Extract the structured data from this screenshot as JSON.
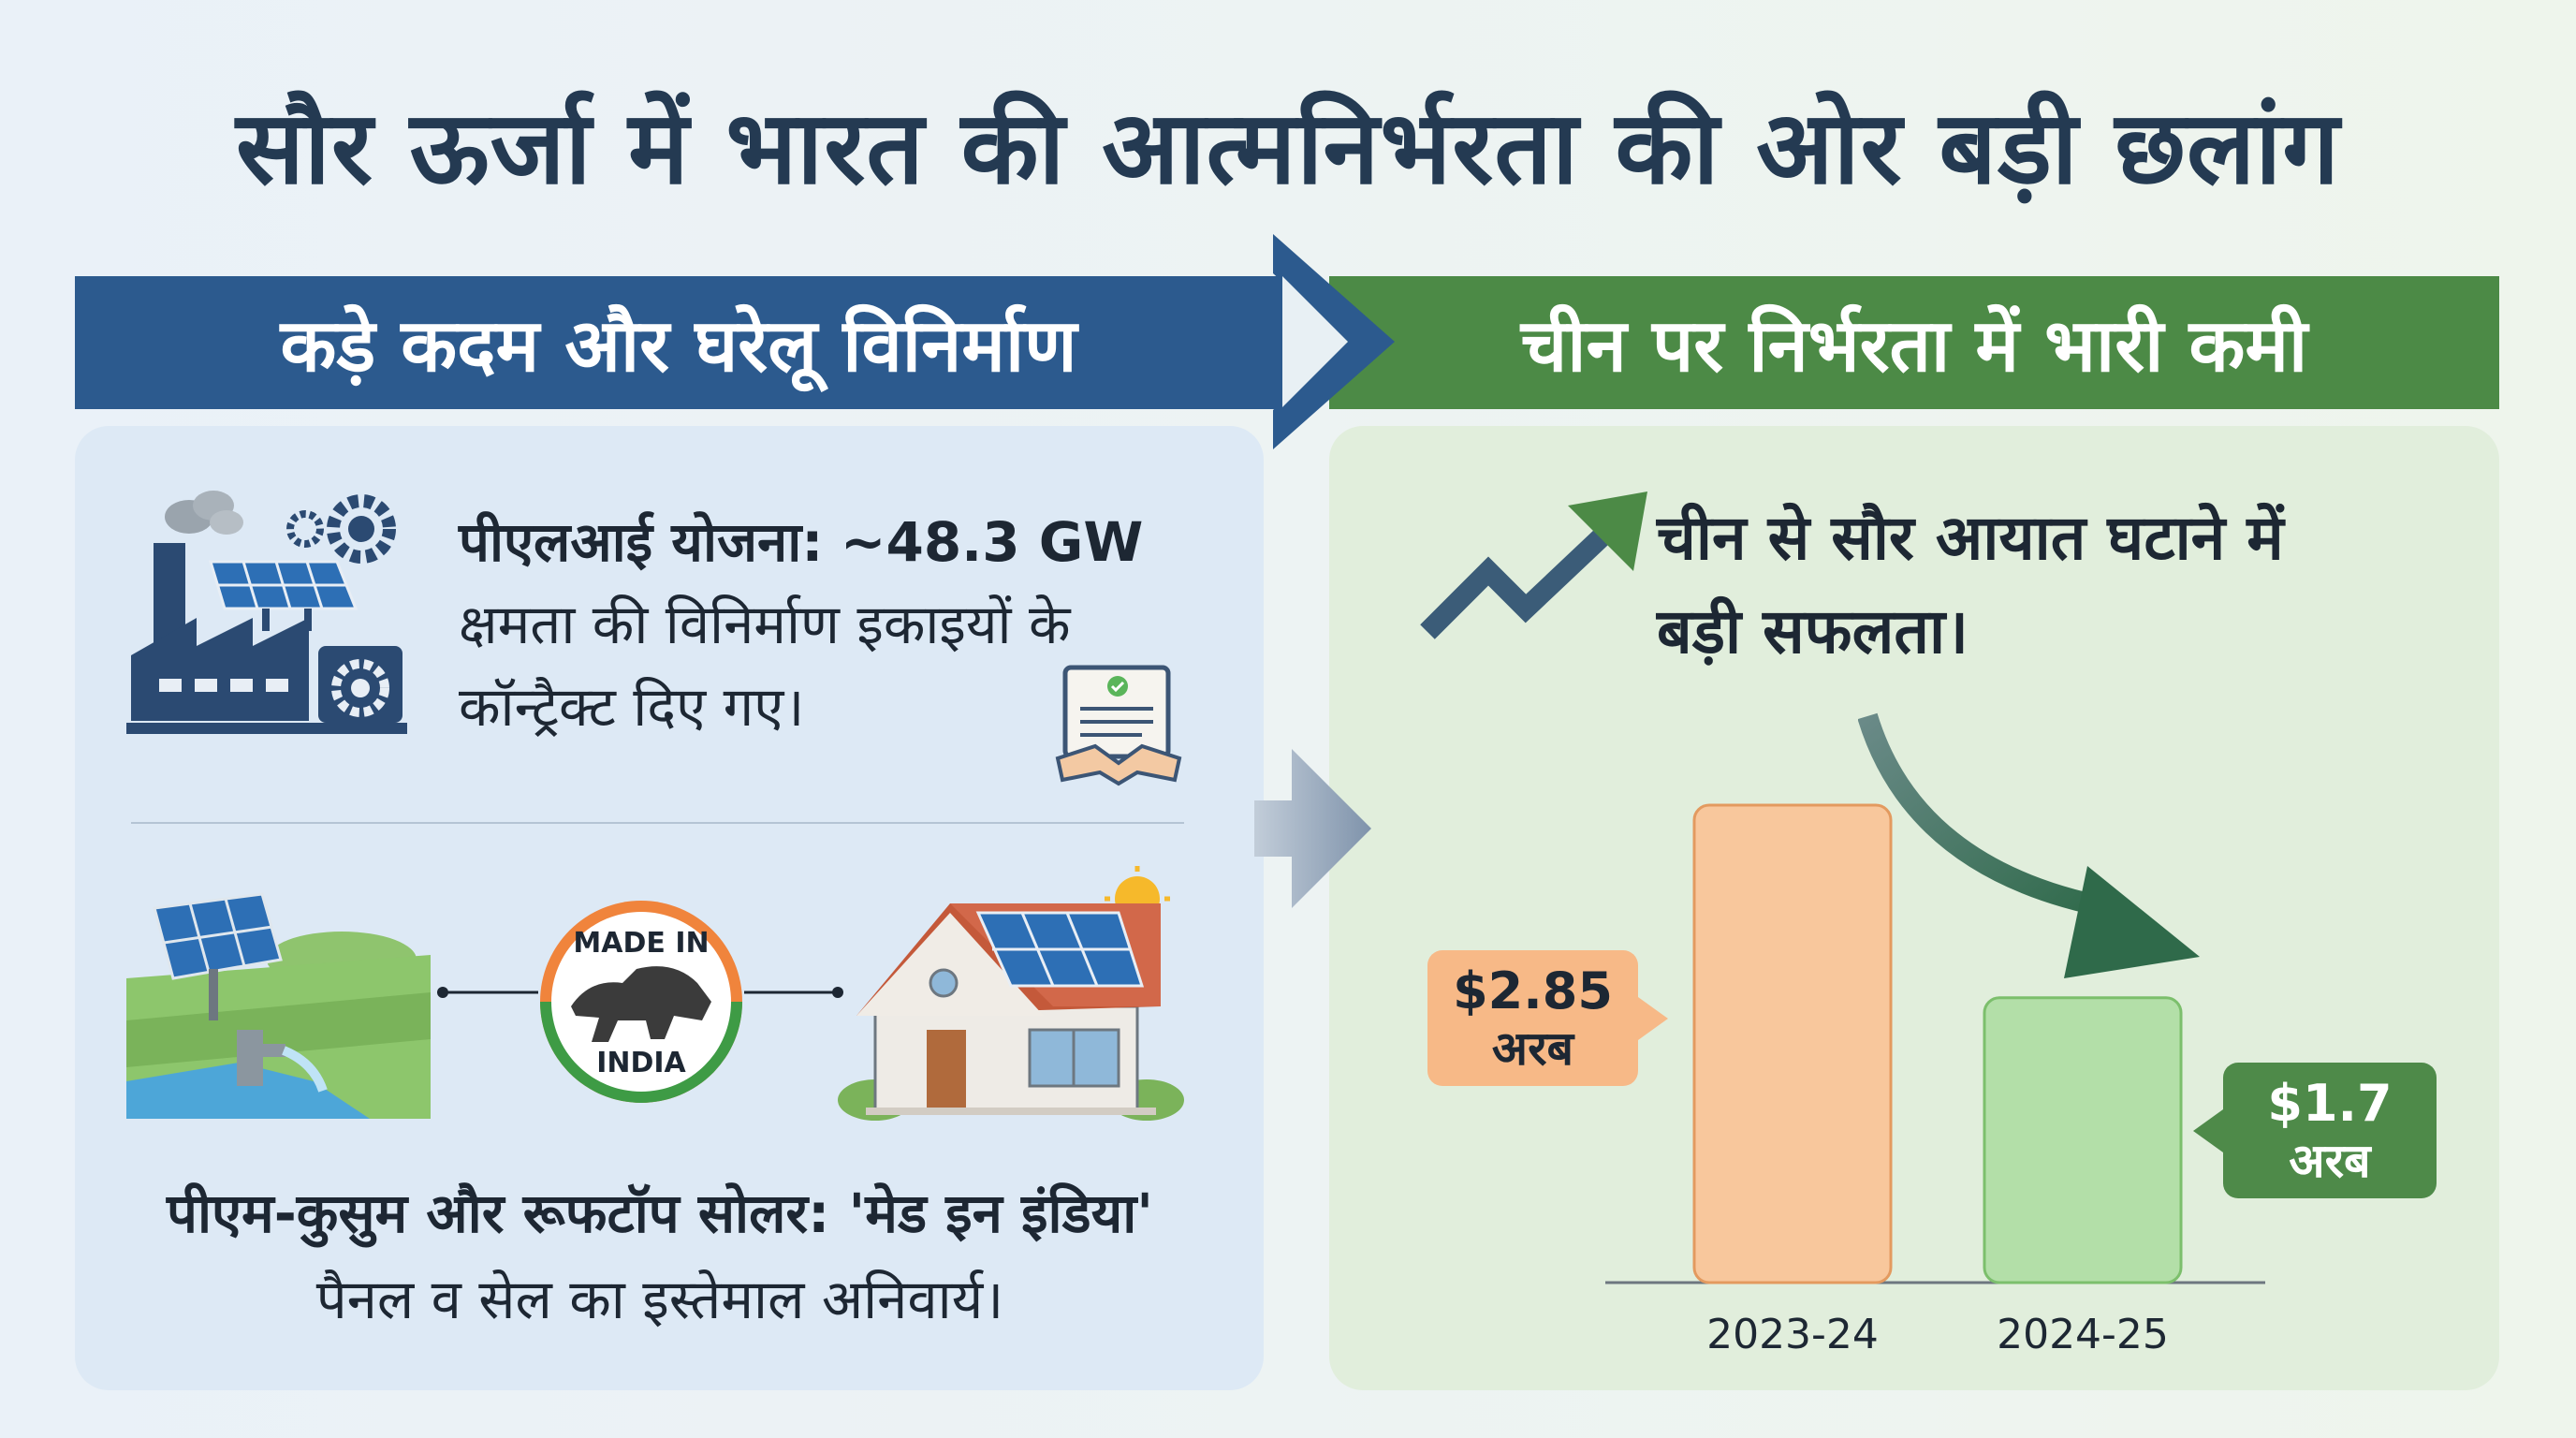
{
  "title": "सौर ऊर्जा में भारत की आत्मनिर्भरता की ओर बड़ी छलांग",
  "banners": {
    "left": "कड़े कदम और घरेलू विनिर्माण",
    "right": "चीन पर निर्भरता में भारी कमी"
  },
  "left_panel": {
    "pli_label": "पीएलआई योजना:",
    "pli_value": "~48.3 GW",
    "pli_text": "क्षमता की विनिर्माण इकाइयों के कॉन्ट्रैक्ट दिए गए।",
    "made_in_top": "MADE IN",
    "made_in_bottom": "INDIA",
    "kusum_line1": "पीएम-कुसुम और रूफटॉप सोलर: 'मेड इन इंडिया'",
    "kusum_line2": "पैनल व सेल का इस्तेमाल अनिवार्य।"
  },
  "right_panel": {
    "headline_line1": "चीन से सौर आयात घटाने में",
    "headline_line2": "बड़ी सफलता।"
  },
  "colors": {
    "navy": "#2c5a8e",
    "green": "#4c8a46",
    "bar_2023": "#f8c79c",
    "bar_2024": "#b3dfa8",
    "callout_orange": "#f7b987",
    "callout_green": "#4e8a49"
  },
  "icons": [
    "factory-icon",
    "gear-icon",
    "contract-handshake-icon",
    "solar-farm-pump-icon",
    "made-in-india-lion-seal",
    "rooftop-solar-house-icon",
    "trend-up-arrow-icon",
    "decline-arrow-icon"
  ],
  "chart_data": {
    "type": "bar",
    "categories": [
      "2023-24",
      "2024-25"
    ],
    "values": [
      2.85,
      1.7
    ],
    "value_labels": [
      {
        "amount": "$2.85",
        "unit": "अरब"
      },
      {
        "amount": "$1.7",
        "unit": "अरब"
      }
    ],
    "grid": false,
    "legend": "none"
  }
}
